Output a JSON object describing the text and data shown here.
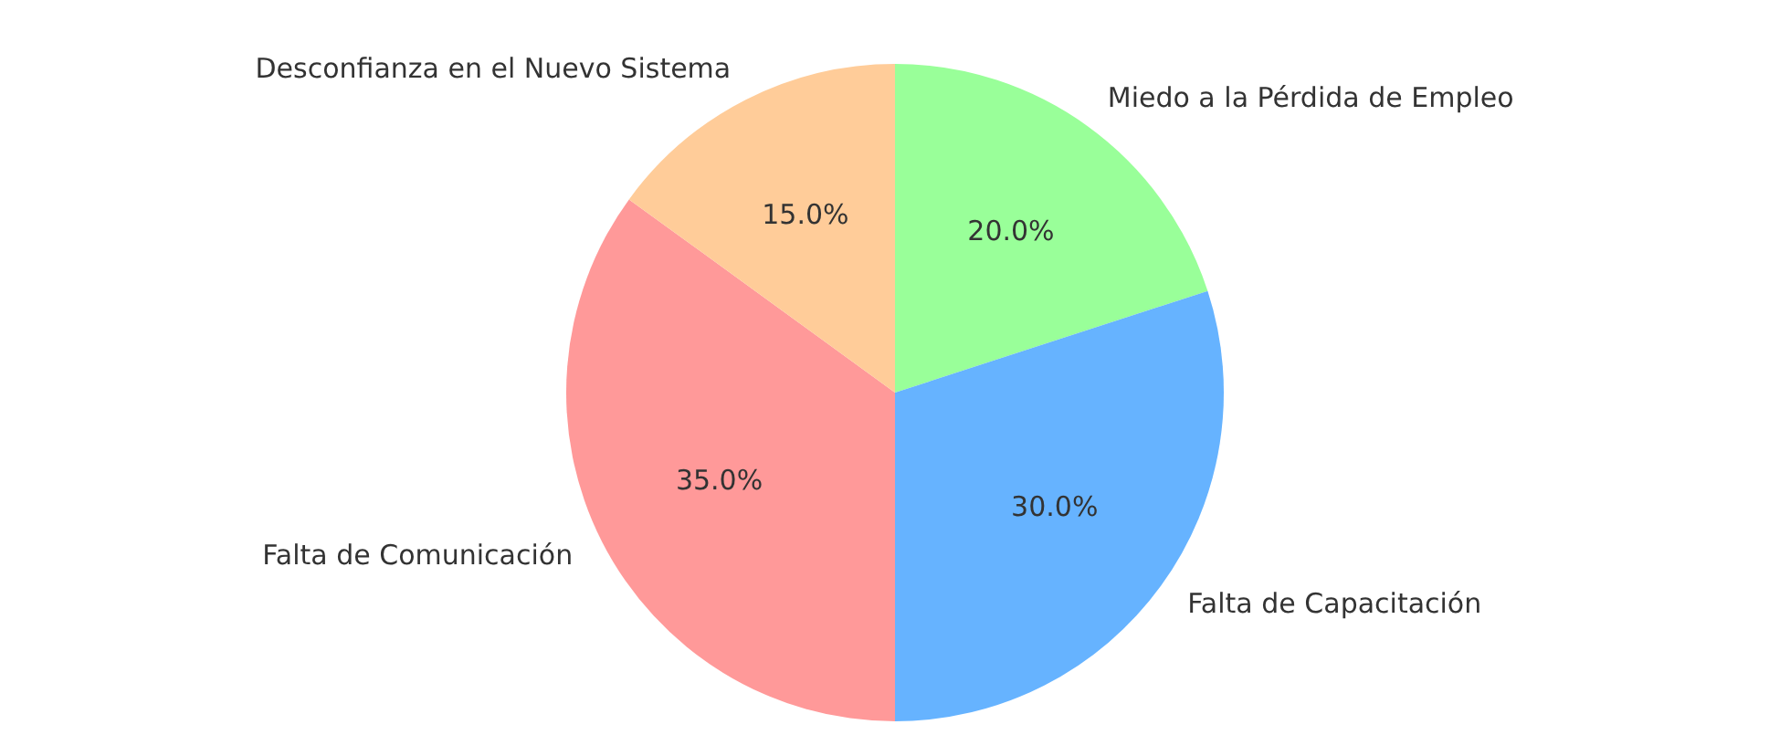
{
  "chart_data": {
    "type": "pie",
    "categories": [
      "Miedo a la Pérdida de Empleo",
      "Falta de Capacitación",
      "Falta de Comunicación",
      "Desconfianza en el Nuevo Sistema"
    ],
    "values": [
      20,
      30,
      35,
      15
    ],
    "colors": [
      "#99ff99",
      "#66b3ff",
      "#ff9999",
      "#ffcc99"
    ],
    "value_labels": [
      "20.0%",
      "30.0%",
      "35.0%",
      "15.0%"
    ],
    "legend": false
  }
}
